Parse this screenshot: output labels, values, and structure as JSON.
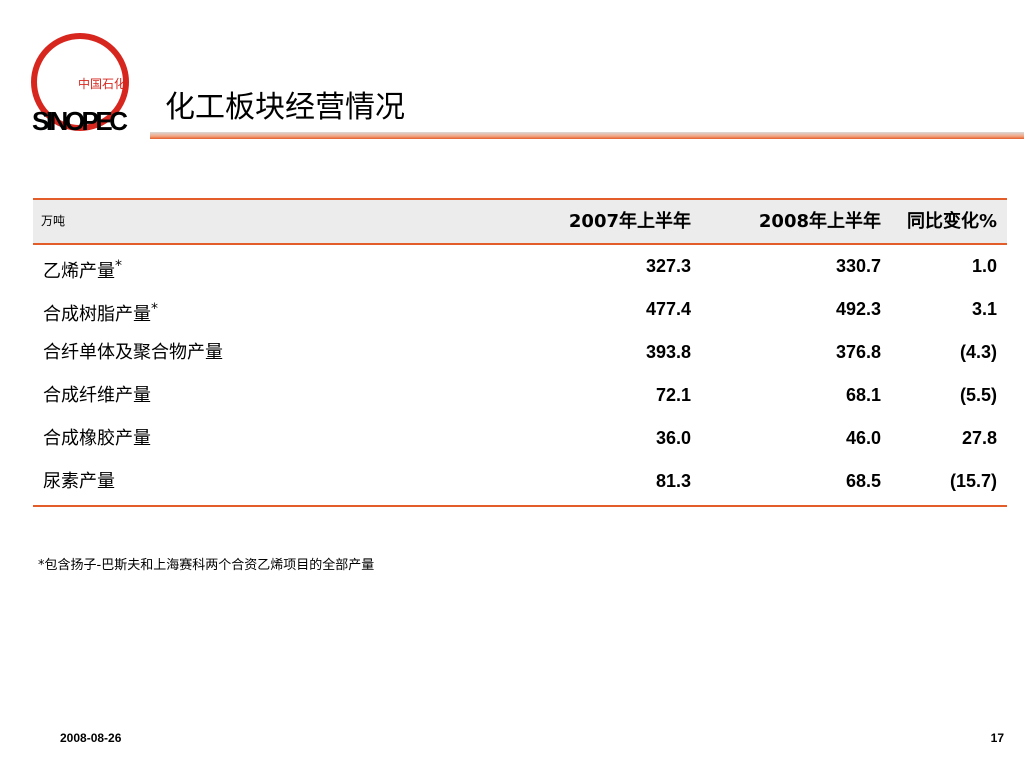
{
  "logo": {
    "brand": "SINOPEC",
    "chinese": "中国石化"
  },
  "header": {
    "title": "化工板块经营情况"
  },
  "table": {
    "unit": "万吨",
    "columns": [
      "2007年上半年",
      "2008年上半年",
      "同比变化%"
    ],
    "rows": [
      {
        "label": "乙烯产量",
        "marker": "*",
        "values": [
          "327.3",
          "330.7",
          "1.0"
        ]
      },
      {
        "label": "合成树脂产量",
        "marker": "*",
        "values": [
          "477.4",
          "492.3",
          "3.1"
        ]
      },
      {
        "label": "合纤单体及聚合物产量",
        "values": [
          "393.8",
          "376.8",
          "(4.3)"
        ]
      },
      {
        "label": "合成纤维产量",
        "values": [
          "72.1",
          "68.1",
          "(5.5)"
        ]
      },
      {
        "label": "合成橡胶产量",
        "values": [
          "36.0",
          "46.0",
          "27.8"
        ]
      },
      {
        "label": "尿素产量",
        "values": [
          "81.3",
          "68.5",
          "(15.7)"
        ]
      }
    ]
  },
  "footnote": "*包含扬子-巴斯夫和上海赛科两个合资乙烯项目的全部产量",
  "footer": {
    "date": "2008-08-26",
    "page": "17"
  }
}
